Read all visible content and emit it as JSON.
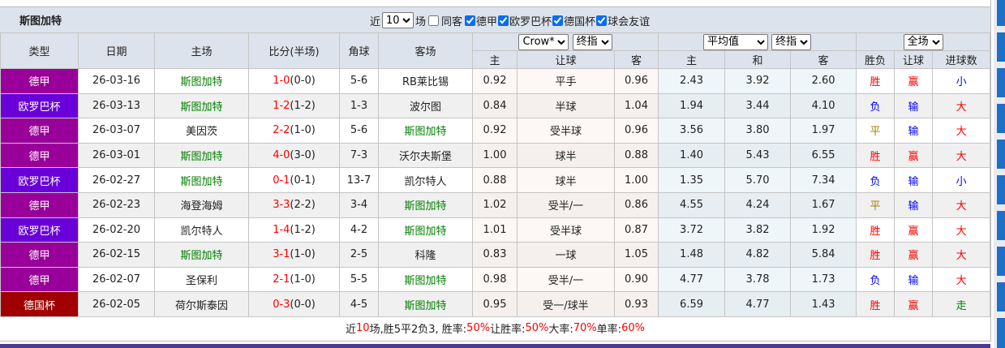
{
  "header": {
    "team": "斯图加特",
    "recent_prefix": "近",
    "recent_count": "10",
    "recent_suffix": "场",
    "same_venue": "同客",
    "filters": [
      {
        "label": "德甲",
        "checked": true
      },
      {
        "label": "欧罗巴杯",
        "checked": true
      },
      {
        "label": "德国杯",
        "checked": true
      },
      {
        "label": "球会友谊",
        "checked": true
      }
    ]
  },
  "columns": {
    "type": "类型",
    "date": "日期",
    "home": "主场",
    "score": "比分(半场)",
    "corner": "角球",
    "away": "客场",
    "odds_company": "Crow*",
    "odds_mode": "终指",
    "avg": "平均值",
    "avg_mode": "终指",
    "period": "全场",
    "h": "主",
    "hc": "让球",
    "a": "客",
    "h2": "主",
    "d": "和",
    "a2": "客",
    "wl": "胜负",
    "hcr": "让球",
    "goals": "进球数"
  },
  "colors": {
    "德甲": "#990099",
    "欧罗巴杯": "#6a00d9",
    "德国杯": "#a00000"
  },
  "rows": [
    {
      "type": "德甲",
      "date": "26-03-16",
      "home": "斯图加特",
      "home_hl": true,
      "ft": "1-0",
      "ht": "(0-0)",
      "corner": "5-6",
      "away": "RB莱比锡",
      "away_hl": false,
      "h": "0.92",
      "hc": "平手",
      "a": "0.96",
      "h2": "2.43",
      "d": "3.92",
      "a2": "2.60",
      "wl": "胜",
      "hcr": "赢",
      "goals": "小"
    },
    {
      "type": "欧罗巴杯",
      "date": "26-03-13",
      "home": "斯图加特",
      "home_hl": true,
      "ft": "1-2",
      "ht": "(1-2)",
      "corner": "1-3",
      "away": "波尔图",
      "away_hl": false,
      "h": "0.84",
      "hc": "半球",
      "a": "1.04",
      "h2": "1.94",
      "d": "3.44",
      "a2": "4.10",
      "wl": "负",
      "hcr": "输",
      "goals": "大"
    },
    {
      "type": "德甲",
      "date": "26-03-07",
      "home": "美因茨",
      "home_hl": false,
      "ft": "2-2",
      "ht": "(1-0)",
      "corner": "5-6",
      "away": "斯图加特",
      "away_hl": true,
      "h": "0.92",
      "hc": "受半球",
      "a": "0.96",
      "h2": "3.56",
      "d": "3.80",
      "a2": "1.97",
      "wl": "平",
      "hcr": "输",
      "goals": "大"
    },
    {
      "type": "德甲",
      "date": "26-03-01",
      "home": "斯图加特",
      "home_hl": true,
      "ft": "4-0",
      "ht": "(3-0)",
      "corner": "7-3",
      "away": "沃尔夫斯堡",
      "away_hl": false,
      "h": "1.00",
      "hc": "球半",
      "a": "0.88",
      "h2": "1.40",
      "d": "5.43",
      "a2": "6.55",
      "wl": "胜",
      "hcr": "赢",
      "goals": "大"
    },
    {
      "type": "欧罗巴杯",
      "date": "26-02-27",
      "home": "斯图加特",
      "home_hl": true,
      "ft": "0-1",
      "ht": "(0-1)",
      "corner": "13-7",
      "away": "凯尔特人",
      "away_hl": false,
      "h": "0.88",
      "hc": "球半",
      "a": "1.00",
      "h2": "1.35",
      "d": "5.70",
      "a2": "7.34",
      "wl": "负",
      "hcr": "输",
      "goals": "小"
    },
    {
      "type": "德甲",
      "date": "26-02-23",
      "home": "海登海姆",
      "home_hl": false,
      "ft": "3-3",
      "ht": "(2-2)",
      "corner": "3-4",
      "away": "斯图加特",
      "away_hl": true,
      "h": "1.02",
      "hc": "受半/一",
      "a": "0.86",
      "h2": "4.55",
      "d": "4.24",
      "a2": "1.67",
      "wl": "平",
      "hcr": "输",
      "goals": "大"
    },
    {
      "type": "欧罗巴杯",
      "date": "26-02-20",
      "home": "凯尔特人",
      "home_hl": false,
      "ft": "1-4",
      "ht": "(1-2)",
      "corner": "4-2",
      "away": "斯图加特",
      "away_hl": true,
      "h": "1.01",
      "hc": "受半球",
      "a": "0.87",
      "h2": "3.72",
      "d": "3.82",
      "a2": "1.92",
      "wl": "胜",
      "hcr": "赢",
      "goals": "大"
    },
    {
      "type": "德甲",
      "date": "26-02-15",
      "home": "斯图加特",
      "home_hl": true,
      "ft": "3-1",
      "ht": "(1-0)",
      "corner": "2-5",
      "away": "科隆",
      "away_hl": false,
      "h": "0.83",
      "hc": "一球",
      "a": "1.05",
      "h2": "1.48",
      "d": "4.82",
      "a2": "5.84",
      "wl": "胜",
      "hcr": "赢",
      "goals": "大"
    },
    {
      "type": "德甲",
      "date": "26-02-07",
      "home": "圣保利",
      "home_hl": false,
      "ft": "2-1",
      "ht": "(1-0)",
      "corner": "5-5",
      "away": "斯图加特",
      "away_hl": true,
      "h": "0.98",
      "hc": "受半/一",
      "a": "0.90",
      "h2": "4.77",
      "d": "3.78",
      "a2": "1.73",
      "wl": "负",
      "hcr": "输",
      "goals": "大"
    },
    {
      "type": "德国杯",
      "date": "26-02-05",
      "home": "荷尔斯泰因",
      "home_hl": false,
      "ft": "0-3",
      "ht": "(0-0)",
      "corner": "4-5",
      "away": "斯图加特",
      "away_hl": true,
      "h": "0.95",
      "hc": "受一/球半",
      "a": "0.93",
      "h2": "6.59",
      "d": "4.77",
      "a2": "1.43",
      "wl": "胜",
      "hcr": "赢",
      "goals": "走"
    }
  ],
  "summary": {
    "p1": "近",
    "n": "10",
    "p2": "场,胜5平2负3, 胜率:",
    "win": "50%",
    "p3": " 让胜率:",
    "hcwin": "50%",
    "p4": " 大率:",
    "big": "70%",
    "p5": " 单率:",
    "odd": "60%"
  }
}
